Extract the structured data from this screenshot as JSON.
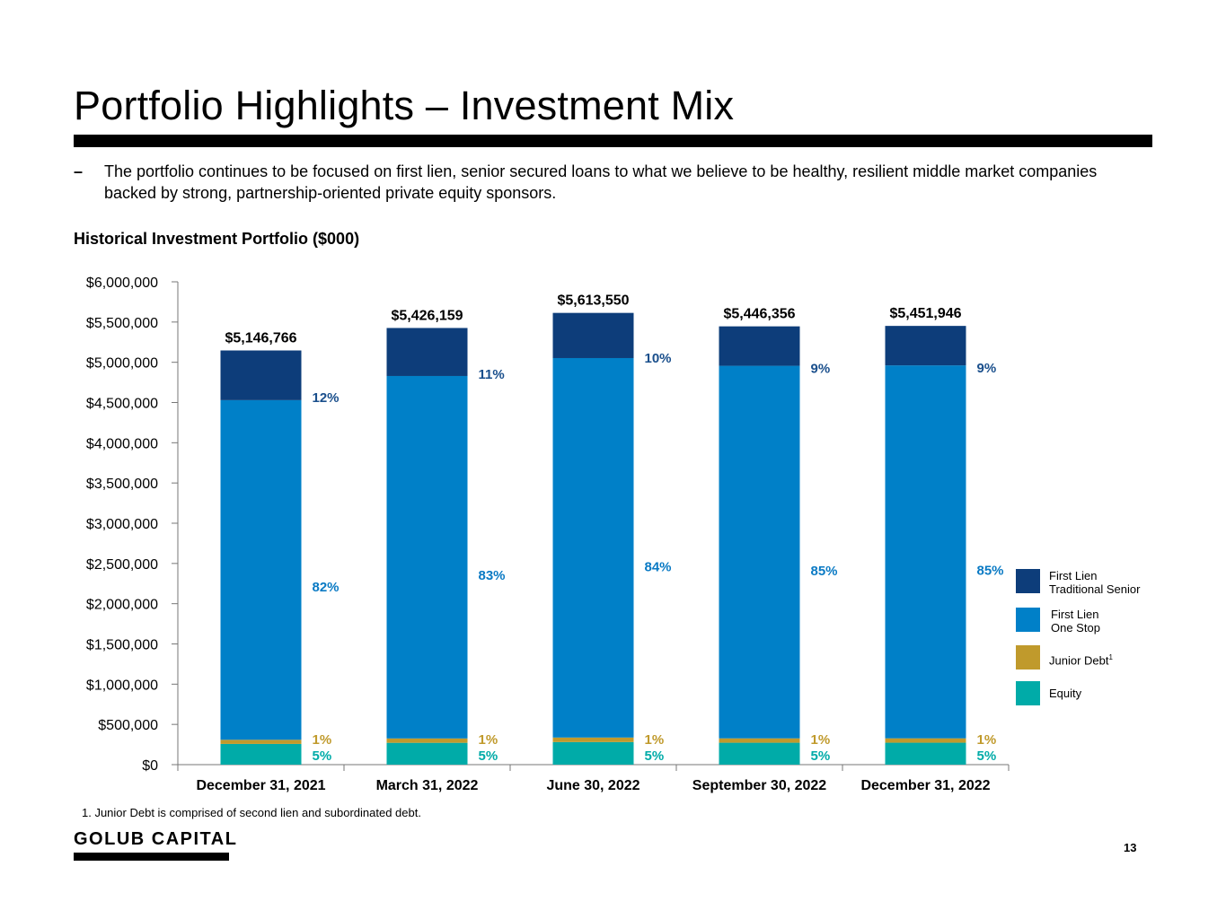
{
  "page": {
    "title": "Portfolio Highlights – Investment Mix",
    "bullet_dash": "–",
    "bullet_text": "The portfolio continues to be focused on first lien, senior secured loans to what we believe to be healthy, resilient middle market companies backed by strong, partnership-oriented private equity sponsors.",
    "chart_heading": "Historical Investment Portfolio ($000)",
    "footnote": "1.  Junior Debt is comprised of second lien and subordinated debt.",
    "brand": "GOLUB CAPITAL",
    "page_number": "13"
  },
  "legend": [
    {
      "line1": "First Lien",
      "line2": "Traditional Senior",
      "color": "#0d3d7a"
    },
    {
      "line1": "First Lien",
      "line2": "One Stop",
      "color": "#0080c8"
    },
    {
      "line1": "Junior Debt",
      "sup": "1",
      "color": "#c09a2c"
    },
    {
      "line1": "Equity",
      "color": "#00aba8"
    }
  ],
  "chart_data": {
    "type": "bar",
    "stacked": true,
    "title": "Historical Investment Portfolio ($000)",
    "categories": [
      "December 31, 2021",
      "March 31, 2022",
      "June 30, 2022",
      "September 30, 2022",
      "December 31, 2022"
    ],
    "totals": [
      5146766,
      5426159,
      5613550,
      5446356,
      5451946
    ],
    "total_labels": [
      "$5,146,766",
      "$5,426,159",
      "$5,613,550",
      "$5,446,356",
      "$5,451,946"
    ],
    "series": [
      {
        "name": "Equity",
        "color": "#00aba8",
        "label_color": "#00aba8",
        "percent_labels": [
          "5%",
          "5%",
          "5%",
          "5%",
          "5%"
        ],
        "values": [
          257338,
          271308,
          280678,
          272318,
          272597
        ]
      },
      {
        "name": "Junior Debt",
        "color": "#c09a2c",
        "label_color": "#c09a2c",
        "percent_labels": [
          "1%",
          "1%",
          "1%",
          "1%",
          "1%"
        ],
        "values": [
          51468,
          54262,
          56136,
          54464,
          54519
        ]
      },
      {
        "name": "First Lien One Stop",
        "color": "#0080c8",
        "label_color": "#0a7ac4",
        "percent_labels": [
          "82%",
          "83%",
          "84%",
          "85%",
          "85%"
        ],
        "values": [
          4220348,
          4503712,
          4715382,
          4629403,
          4634154
        ]
      },
      {
        "name": "First Lien Traditional Senior",
        "color": "#0d3d7a",
        "label_color": "#1a4f8c",
        "percent_labels": [
          "12%",
          "11%",
          "10%",
          "9%",
          "9%"
        ],
        "values": [
          617612,
          596877,
          561354,
          490171,
          490675
        ]
      }
    ],
    "yticks": [
      "$0",
      "$500,000",
      "$1,000,000",
      "$1,500,000",
      "$2,000,000",
      "$2,500,000",
      "$3,000,000",
      "$3,500,000",
      "$4,000,000",
      "$4,500,000",
      "$5,000,000",
      "$5,500,000",
      "$6,000,000"
    ],
    "ylim": [
      0,
      6000000
    ],
    "ystep": 500000,
    "grid": false,
    "legend_position": "right"
  }
}
